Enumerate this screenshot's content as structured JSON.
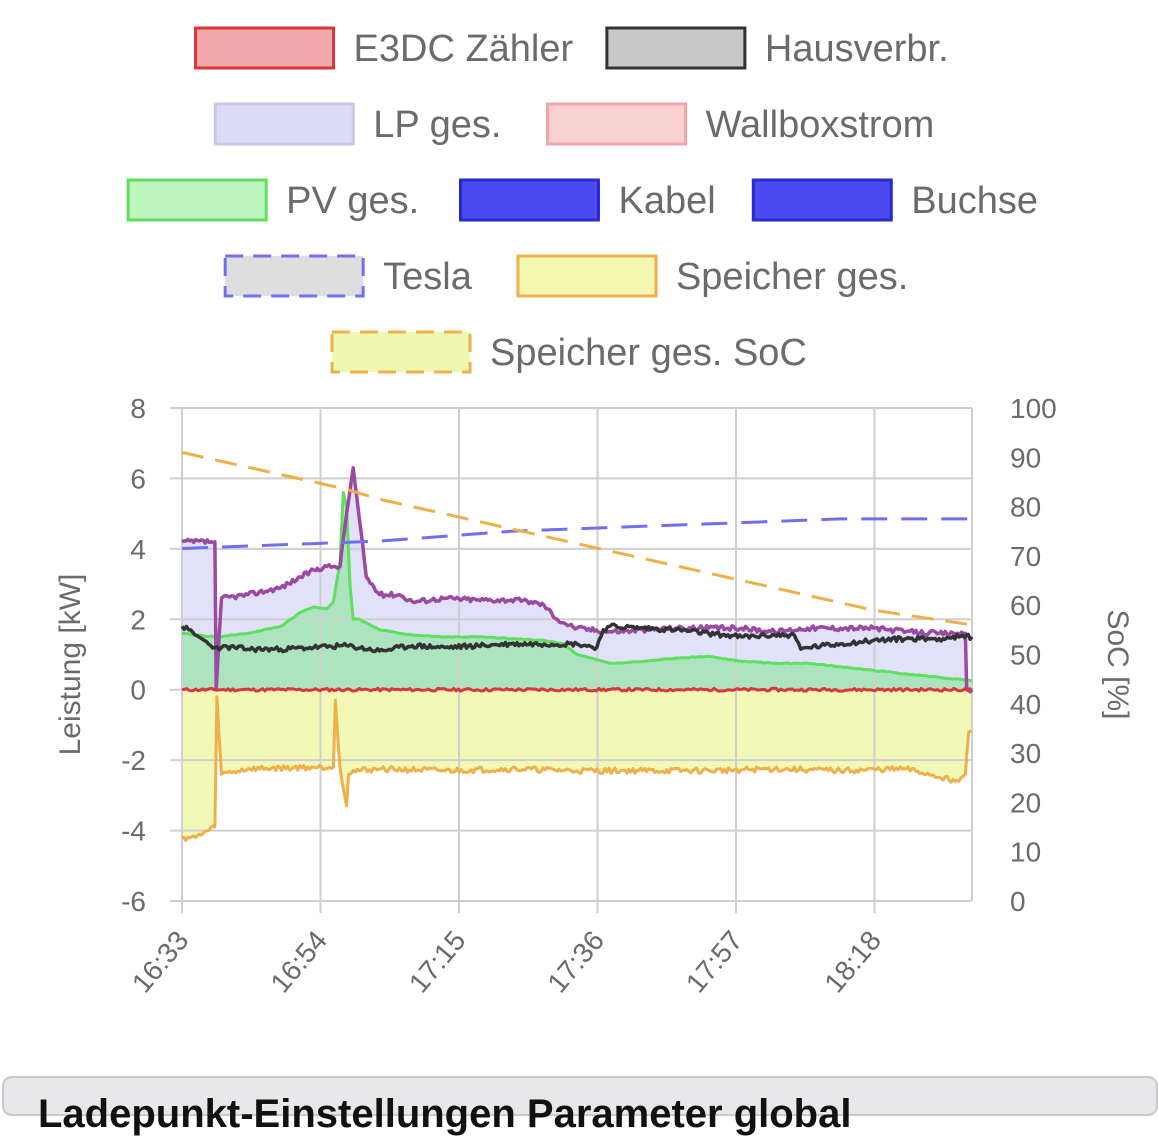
{
  "chart_data": {
    "type": "line",
    "x_ticks": [
      "16:33",
      "16:54",
      "17:15",
      "17:36",
      "17:57",
      "18:18"
    ],
    "x_range_minutes": [
      0,
      120
    ],
    "y_left": {
      "label": "Leistung [kW]",
      "range": [
        -6,
        8
      ],
      "ticks": [
        -6,
        -4,
        -2,
        0,
        2,
        4,
        6,
        8
      ]
    },
    "y_right": {
      "label": "SoC [%]",
      "range": [
        0,
        100
      ],
      "ticks": [
        0,
        10,
        20,
        30,
        40,
        50,
        60,
        70,
        80,
        90,
        100
      ]
    },
    "grid": true,
    "legend_position": "top",
    "legend": [
      {
        "name": "E3DC Zähler",
        "fill": "#f0a8aa",
        "stroke": "#d9373c",
        "dashed": false
      },
      {
        "name": "Hausverbr.",
        "fill": "#c8c8c8",
        "stroke": "#333333",
        "dashed": false
      },
      {
        "name": "LP ges.",
        "fill": "#dcdcf8",
        "stroke": "#c9c9e4",
        "dashed": false
      },
      {
        "name": "Wallboxstrom",
        "fill": "#f8d0d0",
        "stroke": "#eea6a6",
        "dashed": false
      },
      {
        "name": "PV ges.",
        "fill": "#bff5bf",
        "stroke": "#5ee05e",
        "dashed": false
      },
      {
        "name": "Kabel",
        "fill": "#4a4af2",
        "stroke": "#2a2ac8",
        "dashed": false
      },
      {
        "name": "Buchse",
        "fill": "#4a4af2",
        "stroke": "#2a2ac8",
        "dashed": false
      },
      {
        "name": "Tesla",
        "fill": "#dedede",
        "stroke": "#7070ee",
        "dashed": true
      },
      {
        "name": "Speicher ges.",
        "fill": "#f4f7b0",
        "stroke": "#eeb04a",
        "dashed": false
      },
      {
        "name": "Speicher ges. SoC",
        "fill": "#f0f7b0",
        "stroke": "#eeb04a",
        "dashed": true
      }
    ],
    "series": [
      {
        "name": "E3DC Zähler",
        "axis": "left",
        "color": "#d9373c",
        "x": [
          0,
          120
        ],
        "y": [
          0.0,
          0.0
        ]
      },
      {
        "name": "Hausverbr.",
        "axis": "left",
        "color": "#333333",
        "x": [
          0,
          1,
          2,
          3,
          4,
          5,
          6,
          8,
          10,
          15,
          20,
          25,
          30,
          35,
          40,
          45,
          50,
          55,
          60,
          63,
          64,
          65,
          70,
          75,
          80,
          85,
          90,
          93,
          94,
          95,
          100,
          105,
          110,
          115,
          118,
          120
        ],
        "y": [
          1.8,
          1.7,
          1.55,
          1.45,
          1.3,
          1.2,
          1.2,
          1.2,
          1.15,
          1.15,
          1.2,
          1.25,
          1.1,
          1.25,
          1.2,
          1.25,
          1.3,
          1.3,
          1.3,
          1.2,
          1.7,
          1.8,
          1.75,
          1.7,
          1.6,
          1.5,
          1.55,
          1.55,
          1.15,
          1.2,
          1.3,
          1.4,
          1.45,
          1.45,
          1.5,
          1.5
        ]
      },
      {
        "name": "LP ges.",
        "axis": "left",
        "color": "#9a4aa0",
        "x": [
          0,
          5,
          5.2,
          6,
          10,
          15,
          18,
          20,
          22,
          23,
          24,
          25,
          26,
          28,
          30,
          33,
          35,
          40,
          45,
          50,
          53,
          55,
          57,
          58,
          60,
          65,
          70,
          75,
          80,
          85,
          90,
          95,
          100,
          105,
          110,
          115,
          119,
          119.2,
          120
        ],
        "y": [
          4.2,
          4.2,
          0,
          2.6,
          2.7,
          2.9,
          3.2,
          3.4,
          3.5,
          3.5,
          3.5,
          5.0,
          6.3,
          3.2,
          2.7,
          2.7,
          2.5,
          2.6,
          2.55,
          2.55,
          2.5,
          2.4,
          2.0,
          1.9,
          1.75,
          1.65,
          1.7,
          1.75,
          1.75,
          1.75,
          1.65,
          1.75,
          1.75,
          1.75,
          1.65,
          1.6,
          1.6,
          0,
          0
        ]
      },
      {
        "name": "PV ges.",
        "axis": "left",
        "color": "#5ee05e",
        "x": [
          0,
          5,
          10,
          15,
          18,
          20,
          22,
          23,
          24,
          24.5,
          25,
          25.5,
          26,
          27,
          28,
          30,
          35,
          40,
          45,
          50,
          55,
          58,
          60,
          65,
          70,
          75,
          80,
          85,
          90,
          95,
          100,
          105,
          110,
          115,
          120
        ],
        "y": [
          1.6,
          1.5,
          1.6,
          1.8,
          2.2,
          2.35,
          2.3,
          2.5,
          3.6,
          5.6,
          5.2,
          3.0,
          2.0,
          2.0,
          1.9,
          1.7,
          1.55,
          1.5,
          1.5,
          1.45,
          1.4,
          1.3,
          1.0,
          0.75,
          0.8,
          0.9,
          0.95,
          0.8,
          0.75,
          0.75,
          0.65,
          0.55,
          0.45,
          0.35,
          0.25
        ]
      },
      {
        "name": "Speicher ges.",
        "axis": "left",
        "color": "#eeb04a",
        "x": [
          0,
          2,
          5,
          5.3,
          6,
          10,
          20,
          23,
          23.3,
          24,
          25,
          25.3,
          26,
          30,
          40,
          50,
          60,
          70,
          80,
          90,
          100,
          110,
          118,
          119,
          119.5,
          120
        ],
        "y": [
          -4.2,
          -4.2,
          -3.9,
          -0.2,
          -2.4,
          -2.25,
          -2.2,
          -2.2,
          -0.3,
          -2.2,
          -3.3,
          -2.4,
          -2.3,
          -2.25,
          -2.3,
          -2.25,
          -2.3,
          -2.3,
          -2.3,
          -2.25,
          -2.3,
          -2.25,
          -2.6,
          -2.4,
          -1.2,
          -1.2
        ]
      },
      {
        "name": "Tesla",
        "axis": "right",
        "color": "#7070ee",
        "dashed": true,
        "x": [
          0,
          10,
          20,
          30,
          40,
          50,
          60,
          70,
          80,
          90,
          100,
          110,
          120
        ],
        "y": [
          71.5,
          72.0,
          72.5,
          73.0,
          74.0,
          75.0,
          75.5,
          76.0,
          76.5,
          77.0,
          77.5,
          77.5,
          77.5
        ]
      },
      {
        "name": "Speicher ges. SoC",
        "axis": "right",
        "color": "#eeb04a",
        "dashed": true,
        "x": [
          0,
          5,
          10,
          15,
          20,
          25,
          30,
          35,
          40,
          45,
          50,
          55,
          60,
          65,
          70,
          75,
          80,
          85,
          90,
          95,
          100,
          105,
          110,
          115,
          120
        ],
        "y": [
          91,
          89.5,
          88,
          86.5,
          85,
          83.5,
          81.5,
          80,
          78.5,
          77,
          75.5,
          74,
          72.5,
          71,
          69.5,
          68,
          66.5,
          65,
          63.5,
          62,
          60.5,
          59,
          58,
          57,
          56
        ]
      }
    ]
  },
  "next_card": {
    "title": "Ladepunkt-Einstellungen Parameter global"
  }
}
